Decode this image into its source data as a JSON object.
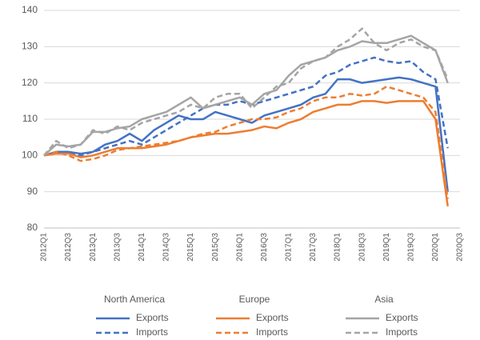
{
  "chart_data": {
    "type": "line",
    "categories": [
      "2012Q1",
      null,
      "2012Q3",
      null,
      "2013Q1",
      null,
      "2013Q3",
      null,
      "2014Q1",
      null,
      "2014Q3",
      null,
      "2015Q1",
      null,
      "2015Q3",
      null,
      "2016Q1",
      null,
      "2016Q3",
      null,
      "2017Q1",
      null,
      "2017Q3",
      null,
      "2018Q1",
      null,
      "2018Q3",
      null,
      "2019Q1",
      null,
      "2019Q3",
      null,
      "2020Q1",
      null,
      "2020Q3"
    ],
    "ylim": [
      80,
      140
    ],
    "yticks": [
      80,
      90,
      100,
      110,
      120,
      130,
      140
    ],
    "grid": true,
    "series": [
      {
        "group": "North America",
        "name": "Exports",
        "color": "#4472c4",
        "dashed": false,
        "values": [
          100,
          101,
          101,
          100.5,
          101,
          103,
          104,
          106,
          104,
          107,
          109,
          111,
          110,
          110,
          112,
          111,
          110,
          109,
          111,
          112,
          113,
          114,
          116,
          117,
          121,
          121,
          120,
          120.5,
          121,
          121.5,
          121,
          120,
          119,
          90,
          null
        ]
      },
      {
        "group": "North America",
        "name": "Imports",
        "color": "#4472c4",
        "dashed": true,
        "values": [
          100,
          101,
          101,
          100,
          101,
          102,
          103,
          104,
          103,
          105,
          107,
          109,
          111,
          113,
          114,
          114,
          115,
          114,
          115,
          116,
          117,
          118,
          119,
          122,
          123,
          125,
          126,
          127,
          126,
          125.5,
          126,
          123,
          121,
          102,
          null
        ]
      },
      {
        "group": "Europe",
        "name": "Exports",
        "color": "#ed7d31",
        "dashed": false,
        "values": [
          100,
          100.5,
          100.5,
          99.5,
          100,
          101,
          102,
          102,
          102,
          102.5,
          103,
          104,
          105,
          105.5,
          106,
          106,
          106.5,
          107,
          108,
          107.5,
          109,
          110,
          112,
          113,
          114,
          114,
          115,
          115,
          114.5,
          115,
          115,
          115,
          110,
          86,
          null
        ]
      },
      {
        "group": "Europe",
        "name": "Imports",
        "color": "#ed7d31",
        "dashed": true,
        "values": [
          100,
          101,
          100,
          98.5,
          99,
          100,
          101.5,
          102,
          102.5,
          103,
          103.5,
          104,
          105,
          106,
          106.5,
          108,
          109,
          110,
          110,
          110.5,
          112,
          113,
          115,
          116,
          116,
          117,
          116.5,
          117,
          119,
          118,
          117,
          116,
          112,
          88,
          null
        ]
      },
      {
        "group": "Asia",
        "name": "Exports",
        "color": "#a5a5a5",
        "dashed": false,
        "values": [
          100,
          103,
          102.5,
          103,
          106.5,
          106.5,
          107.5,
          108,
          110,
          111,
          112,
          114,
          116,
          113,
          114,
          115,
          116,
          114,
          117,
          118,
          122,
          125,
          126,
          127,
          129,
          130,
          131.5,
          131,
          131,
          132,
          133,
          131,
          129,
          120,
          null
        ]
      },
      {
        "group": "Asia",
        "name": "Imports",
        "color": "#a5a5a5",
        "dashed": true,
        "values": [
          100,
          104,
          102,
          103,
          107,
          106,
          108,
          107,
          109,
          110,
          111,
          112,
          114,
          113,
          116,
          117,
          117,
          113,
          116,
          119,
          120,
          124,
          126,
          127,
          130,
          132,
          135,
          131,
          129,
          131,
          132,
          130,
          129,
          121,
          null
        ]
      }
    ]
  }
}
